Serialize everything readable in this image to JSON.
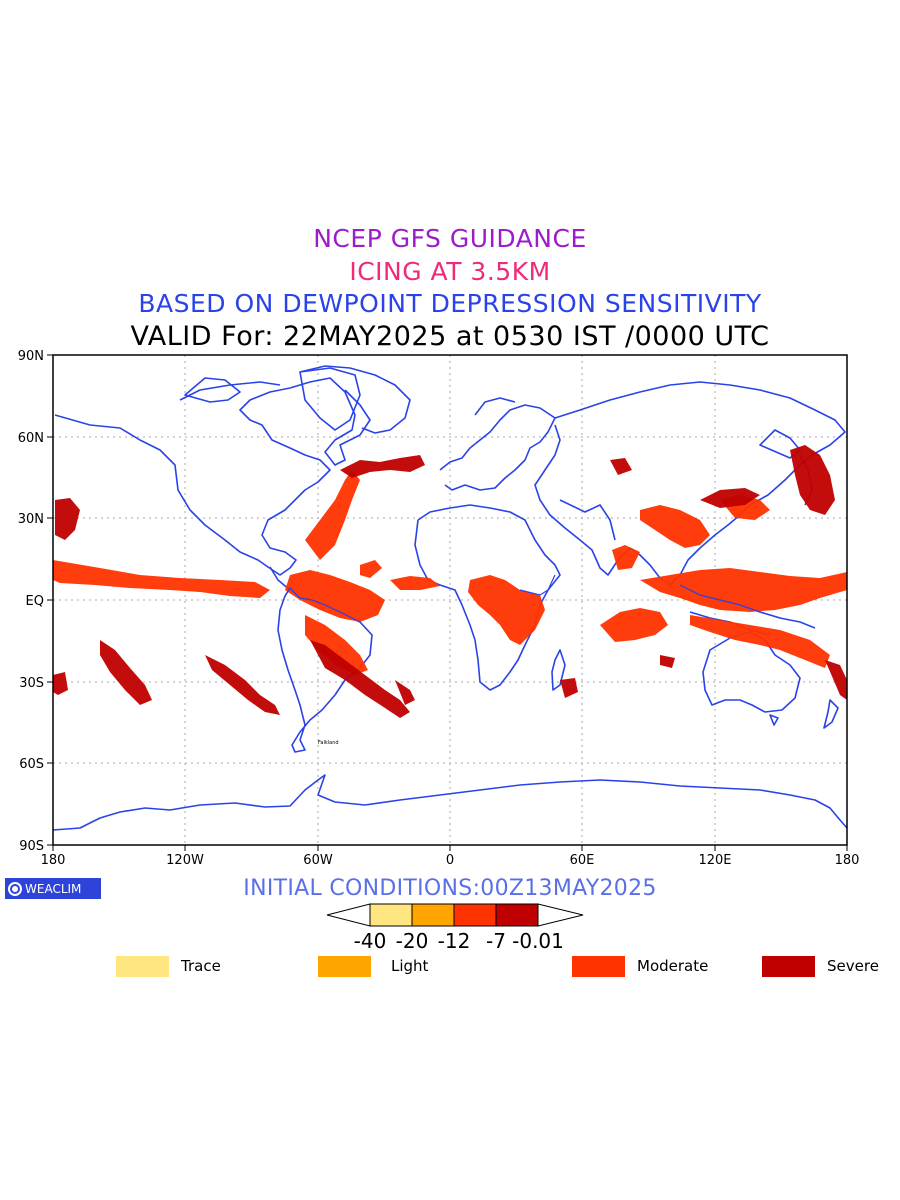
{
  "titles": {
    "line1": "NCEP GFS GUIDANCE",
    "line2": "ICING AT 3.5KM",
    "line3": "BASED ON DEWPOINT DEPRESSION SENSITIVITY",
    "line4": "VALID For: 22MAY2025 at 0530 IST /0000 UTC"
  },
  "axes": {
    "y_ticks": [
      "90N",
      "60N",
      "30N",
      "EQ",
      "30S",
      "60S",
      "90S"
    ],
    "x_ticks": [
      "180",
      "120W",
      "60W",
      "0",
      "60E",
      "120E",
      "180"
    ]
  },
  "map_labels": [
    "Falkland"
  ],
  "brand": {
    "name": "WEACLIM"
  },
  "initial_conditions": "INITIAL CONDITIONS:00Z13MAY2025",
  "colorbar": {
    "labels": [
      "-40",
      "-20",
      "-12",
      "-7",
      "-0.01"
    ],
    "colors": [
      "#ffe680",
      "#ffa500",
      "#ff3300",
      "#c00000"
    ]
  },
  "legend": [
    {
      "label": "Trace",
      "color": "#ffe680"
    },
    {
      "label": "Light",
      "color": "#ffa500"
    },
    {
      "label": "Moderate",
      "color": "#ff3300"
    },
    {
      "label": "Severe",
      "color": "#c00000"
    }
  ],
  "colors": {
    "coastline": "#2a43e8",
    "moderate": "#ff3300",
    "severe": "#c00000",
    "grid": "#aaaaaa"
  }
}
